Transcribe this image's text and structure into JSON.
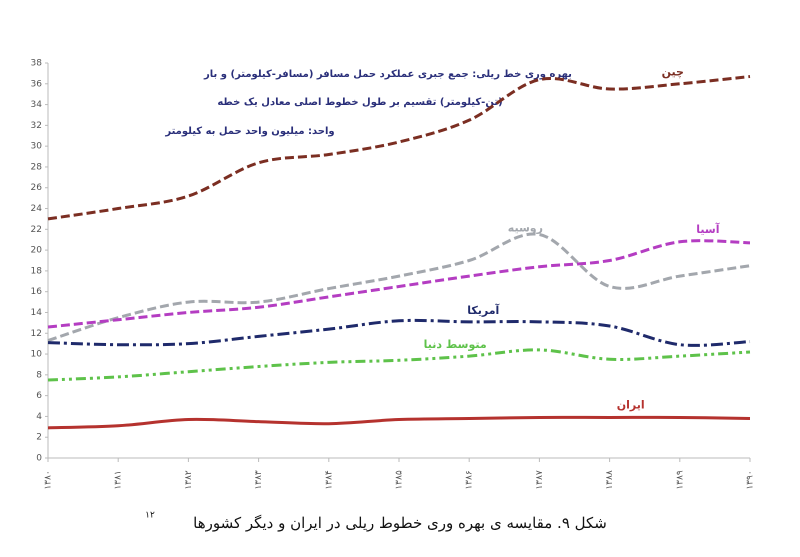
{
  "chart_data": {
    "type": "line",
    "annotation": [
      "بهره وری خط ریلی: جمع جبری عملکرد حمل مسافر (مسافر-کیلومتر) و بار",
      "(تن-کیلومتر) تقسیم بر طول خطوط اصلی معادل یک خطه",
      "واحد: میلیون واحد حمل به کیلومتر"
    ],
    "caption": "شکل ۹. مقایسه ی بهره وری خطوط ریلی در ایران و دیگر کشورها",
    "caption_note": "۱۲",
    "categories": [
      "۱۳۸۰",
      "۱۳۸۱",
      "۱۳۸۲",
      "۱۳۸۳",
      "۱۳۸۴",
      "۱۳۸۵",
      "۱۳۸۶",
      "۱۳۸۷",
      "۱۳۸۸",
      "۱۳۸۹",
      "۱۳۹۰"
    ],
    "ylim": [
      0,
      38
    ],
    "yticks": [
      0,
      2,
      4,
      6,
      8,
      10,
      12,
      14,
      16,
      18,
      20,
      22,
      24,
      26,
      28,
      30,
      32,
      34,
      36,
      38
    ],
    "grid": false,
    "series": [
      {
        "name": "چین",
        "color": "#7b2e22",
        "style": "dashed",
        "values": [
          23,
          24,
          25.2,
          28.4,
          29.2,
          30.4,
          32.5,
          36.4,
          35.5,
          36,
          36.7
        ]
      },
      {
        "name": "روسیه",
        "color": "#a3a7ad",
        "style": "dashed",
        "values": [
          11.3,
          13.5,
          15,
          15,
          16.3,
          17.5,
          19,
          21.5,
          16.5,
          17.5,
          18.5
        ]
      },
      {
        "name": "آسیا",
        "color": "#b43dc2",
        "style": "dashed",
        "values": [
          12.6,
          13.3,
          14,
          14.5,
          15.5,
          16.5,
          17.5,
          18.4,
          19,
          20.8,
          20.7
        ]
      },
      {
        "name": "آمریکا",
        "color": "#1f2a6b",
        "style": "dashdot",
        "values": [
          11.1,
          10.9,
          11,
          11.7,
          12.4,
          13.2,
          13.1,
          13.1,
          12.7,
          10.9,
          11.2
        ]
      },
      {
        "name": "متوسط دنیا",
        "color": "#5ec24a",
        "style": "dashdotdot",
        "values": [
          7.5,
          7.8,
          8.3,
          8.8,
          9.2,
          9.4,
          9.8,
          10.4,
          9.5,
          9.8,
          10.2
        ]
      },
      {
        "name": "ایران",
        "color": "#b5322e",
        "style": "solid",
        "values": [
          2.9,
          3.1,
          3.7,
          3.5,
          3.3,
          3.7,
          3.8,
          3.9,
          3.9,
          3.9,
          3.8
        ]
      }
    ]
  }
}
